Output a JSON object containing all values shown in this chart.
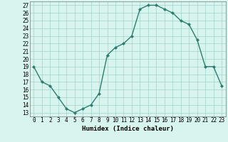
{
  "x": [
    0,
    1,
    2,
    3,
    4,
    5,
    6,
    7,
    8,
    9,
    10,
    11,
    12,
    13,
    14,
    15,
    16,
    17,
    18,
    19,
    20,
    21,
    22,
    23
  ],
  "y": [
    19,
    17,
    16.5,
    15,
    13.5,
    13,
    13.5,
    14,
    15.5,
    20.5,
    21.5,
    22,
    23,
    26.5,
    27,
    27,
    26.5,
    26,
    25,
    24.5,
    22.5,
    19,
    19,
    16.5
  ],
  "xlabel": "Humidex (Indice chaleur)",
  "ylim_min": 13,
  "ylim_max": 27,
  "xlim_min": 0,
  "xlim_max": 23,
  "yticks": [
    13,
    14,
    15,
    16,
    17,
    18,
    19,
    20,
    21,
    22,
    23,
    24,
    25,
    26,
    27
  ],
  "xticks": [
    0,
    1,
    2,
    3,
    4,
    5,
    6,
    7,
    8,
    9,
    10,
    11,
    12,
    13,
    14,
    15,
    16,
    17,
    18,
    19,
    20,
    21,
    22,
    23
  ],
  "line_color": "#2d7d6e",
  "marker": "D",
  "marker_size": 2.0,
  "background_color": "#d7f4ef",
  "grid_color": "#a0d4cc",
  "tick_fontsize": 5.5,
  "xlabel_fontsize": 6.5,
  "linewidth": 1.0
}
